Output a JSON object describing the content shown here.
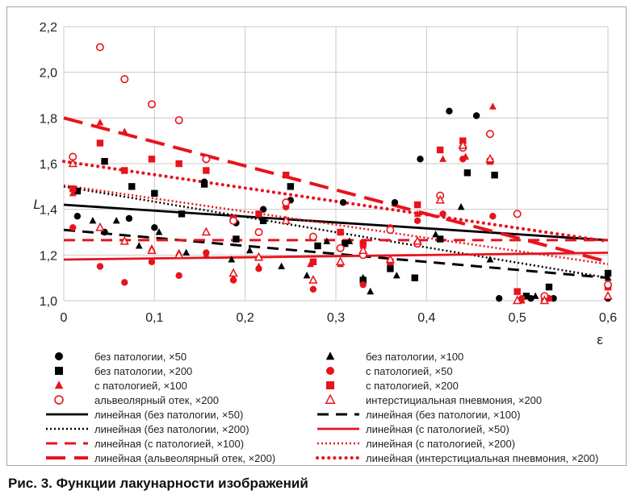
{
  "chart_data": {
    "type": "scatter",
    "xlabel": "ε",
    "ylabel": "L",
    "xlim": [
      0,
      0.6
    ],
    "ylim": [
      1.0,
      2.2
    ],
    "x_ticks": [
      "0",
      "0,1",
      "0,2",
      "0,3",
      "0,4",
      "0,5",
      "0,6"
    ],
    "y_ticks": [
      "1,0",
      "1,2",
      "1,4",
      "1,6",
      "1,8",
      "2,0",
      "2,2"
    ],
    "grid": "vertical and horizontal",
    "legend_position": "bottom",
    "series": [
      {
        "name": "без патологии, ×50",
        "marker": "circle-filled",
        "color": "#000000",
        "points": [
          [
            0.015,
            1.37
          ],
          [
            0.045,
            1.3
          ],
          [
            0.072,
            1.36
          ],
          [
            0.1,
            1.32
          ],
          [
            0.155,
            1.52
          ],
          [
            0.19,
            1.34
          ],
          [
            0.22,
            1.4
          ],
          [
            0.25,
            1.44
          ],
          [
            0.308,
            1.43
          ],
          [
            0.365,
            1.43
          ],
          [
            0.393,
            1.62
          ],
          [
            0.425,
            1.83
          ],
          [
            0.455,
            1.81
          ],
          [
            0.48,
            1.01
          ],
          [
            0.515,
            1.01
          ],
          [
            0.54,
            1.01
          ],
          [
            0.6,
            1.01
          ]
        ]
      },
      {
        "name": "без патологии, ×100",
        "marker": "triangle-filled",
        "color": "#000000",
        "points": [
          [
            0.032,
            1.35
          ],
          [
            0.058,
            1.35
          ],
          [
            0.083,
            1.24
          ],
          [
            0.105,
            1.3
          ],
          [
            0.135,
            1.21
          ],
          [
            0.185,
            1.18
          ],
          [
            0.205,
            1.22
          ],
          [
            0.24,
            1.15
          ],
          [
            0.268,
            1.11
          ],
          [
            0.29,
            1.26
          ],
          [
            0.315,
            1.26
          ],
          [
            0.33,
            1.1
          ],
          [
            0.338,
            1.04
          ],
          [
            0.367,
            1.11
          ],
          [
            0.41,
            1.29
          ],
          [
            0.438,
            1.41
          ],
          [
            0.47,
            1.18
          ],
          [
            0.52,
            1.02
          ],
          [
            0.6,
            1.1
          ]
        ]
      },
      {
        "name": "без патологии, ×200",
        "marker": "square-filled",
        "color": "#000000",
        "points": [
          [
            0.015,
            1.48
          ],
          [
            0.045,
            1.61
          ],
          [
            0.075,
            1.5
          ],
          [
            0.1,
            1.47
          ],
          [
            0.13,
            1.38
          ],
          [
            0.155,
            1.51
          ],
          [
            0.19,
            1.27
          ],
          [
            0.22,
            1.35
          ],
          [
            0.25,
            1.5
          ],
          [
            0.28,
            1.24
          ],
          [
            0.31,
            1.25
          ],
          [
            0.33,
            1.09
          ],
          [
            0.36,
            1.14
          ],
          [
            0.387,
            1.1
          ],
          [
            0.415,
            1.27
          ],
          [
            0.445,
            1.56
          ],
          [
            0.475,
            1.55
          ],
          [
            0.51,
            1.02
          ],
          [
            0.535,
            1.06
          ],
          [
            0.6,
            1.12
          ]
        ]
      },
      {
        "name": "с патологией, ×50",
        "marker": "circle-filled",
        "color": "#e8131c",
        "points": [
          [
            0.01,
            1.32
          ],
          [
            0.04,
            1.15
          ],
          [
            0.067,
            1.08
          ],
          [
            0.097,
            1.17
          ],
          [
            0.127,
            1.11
          ],
          [
            0.157,
            1.21
          ],
          [
            0.187,
            1.09
          ],
          [
            0.215,
            1.14
          ],
          [
            0.245,
            1.41
          ],
          [
            0.275,
            1.05
          ],
          [
            0.305,
            1.3
          ],
          [
            0.33,
            1.07
          ],
          [
            0.36,
            1.32
          ],
          [
            0.39,
            1.35
          ],
          [
            0.418,
            1.38
          ],
          [
            0.44,
            1.62
          ],
          [
            0.473,
            1.37
          ],
          [
            0.505,
            1.01
          ],
          [
            0.535,
            1.01
          ],
          [
            0.6,
            1.06
          ]
        ]
      },
      {
        "name": "с патологией, ×100",
        "marker": "triangle-filled",
        "color": "#e8131c",
        "points": [
          [
            0.01,
            1.47
          ],
          [
            0.04,
            1.78
          ],
          [
            0.067,
            1.74
          ],
          [
            0.097,
            1.23
          ],
          [
            0.127,
            1.21
          ],
          [
            0.157,
            1.2
          ],
          [
            0.187,
            1.1
          ],
          [
            0.215,
            1.15
          ],
          [
            0.245,
            1.35
          ],
          [
            0.272,
            1.16
          ],
          [
            0.305,
            1.16
          ],
          [
            0.33,
            1.24
          ],
          [
            0.36,
            1.17
          ],
          [
            0.39,
            1.38
          ],
          [
            0.418,
            1.62
          ],
          [
            0.443,
            1.63
          ],
          [
            0.473,
            1.85
          ],
          [
            0.505,
            1.0
          ],
          [
            0.535,
            1.01
          ],
          [
            0.6,
            1.06
          ]
        ]
      },
      {
        "name": "с патологией, ×200",
        "marker": "square-filled",
        "color": "#e8131c",
        "points": [
          [
            0.01,
            1.49
          ],
          [
            0.04,
            1.69
          ],
          [
            0.067,
            1.57
          ],
          [
            0.097,
            1.62
          ],
          [
            0.127,
            1.6
          ],
          [
            0.157,
            1.57
          ],
          [
            0.187,
            1.36
          ],
          [
            0.215,
            1.38
          ],
          [
            0.245,
            1.55
          ],
          [
            0.275,
            1.17
          ],
          [
            0.305,
            1.3
          ],
          [
            0.33,
            1.25
          ],
          [
            0.36,
            1.17
          ],
          [
            0.39,
            1.42
          ],
          [
            0.415,
            1.66
          ],
          [
            0.44,
            1.7
          ],
          [
            0.47,
            1.61
          ],
          [
            0.5,
            1.04
          ],
          [
            0.53,
            1.01
          ],
          [
            0.6,
            1.06
          ]
        ]
      },
      {
        "name": "альвеолярный отек, ×200",
        "marker": "circle-open",
        "color": "#e8131c",
        "points": [
          [
            0.01,
            1.63
          ],
          [
            0.04,
            2.11
          ],
          [
            0.067,
            1.97
          ],
          [
            0.097,
            1.86
          ],
          [
            0.127,
            1.79
          ],
          [
            0.157,
            1.62
          ],
          [
            0.187,
            1.35
          ],
          [
            0.215,
            1.3
          ],
          [
            0.245,
            1.43
          ],
          [
            0.275,
            1.28
          ],
          [
            0.305,
            1.23
          ],
          [
            0.33,
            1.2
          ],
          [
            0.36,
            1.31
          ],
          [
            0.39,
            1.25
          ],
          [
            0.415,
            1.46
          ],
          [
            0.44,
            1.67
          ],
          [
            0.47,
            1.73
          ],
          [
            0.5,
            1.38
          ],
          [
            0.53,
            1.02
          ],
          [
            0.6,
            1.07
          ]
        ]
      },
      {
        "name": "интерстициальная пневмония, ×200",
        "marker": "triangle-open",
        "color": "#e8131c",
        "points": [
          [
            0.01,
            1.6
          ],
          [
            0.04,
            1.32
          ],
          [
            0.067,
            1.26
          ],
          [
            0.097,
            1.22
          ],
          [
            0.127,
            1.2
          ],
          [
            0.157,
            1.3
          ],
          [
            0.187,
            1.12
          ],
          [
            0.215,
            1.19
          ],
          [
            0.245,
            1.35
          ],
          [
            0.275,
            1.09
          ],
          [
            0.305,
            1.17
          ],
          [
            0.33,
            1.22
          ],
          [
            0.36,
            1.18
          ],
          [
            0.39,
            1.26
          ],
          [
            0.415,
            1.44
          ],
          [
            0.44,
            1.68
          ],
          [
            0.47,
            1.62
          ],
          [
            0.5,
            1.0
          ],
          [
            0.53,
            1.0
          ],
          [
            0.6,
            1.02
          ]
        ]
      }
    ],
    "trendlines": [
      {
        "name": "линейная (без патологии, ×50)",
        "color": "#000000",
        "style": "solid",
        "from": [
          0,
          1.42
        ],
        "to": [
          0.6,
          1.265
        ]
      },
      {
        "name": "линейная (без патологии, ×100)",
        "color": "#000000",
        "style": "dash",
        "from": [
          0,
          1.31
        ],
        "to": [
          0.6,
          1.1
        ]
      },
      {
        "name": "линейная (без патологии, ×200)",
        "color": "#000000",
        "style": "dot",
        "from": [
          0,
          1.5
        ],
        "to": [
          0.6,
          1.1
        ]
      },
      {
        "name": "линейная (с патологией, ×50)",
        "color": "#e8131c",
        "style": "solid",
        "from": [
          0,
          1.18
        ],
        "to": [
          0.6,
          1.21
        ]
      },
      {
        "name": "линейная (с патологией, ×100)",
        "color": "#e8131c",
        "style": "dash",
        "from": [
          0,
          1.265
        ],
        "to": [
          0.6,
          1.265
        ]
      },
      {
        "name": "линейная (с патологией, ×200)",
        "color": "#e8131c",
        "style": "dot",
        "from": [
          0,
          1.505
        ],
        "to": [
          0.6,
          1.16
        ]
      },
      {
        "name": "линейная (альвеолярный отек, ×200)",
        "color": "#e8131c",
        "style": "longdash",
        "from": [
          0,
          1.8
        ],
        "to": [
          0.6,
          1.17
        ]
      },
      {
        "name": "линейная (интерстициальная пневмония, ×200)",
        "color": "#e8131c",
        "style": "roundDot",
        "from": [
          0,
          1.61
        ],
        "to": [
          0.6,
          1.26
        ]
      }
    ]
  },
  "legend": [
    {
      "label": "без патологии, ×50",
      "icon": "circle-filled",
      "color": "#000000"
    },
    {
      "label": "без патологии, ×100",
      "icon": "triangle-filled",
      "color": "#000000"
    },
    {
      "label": "без патологии, ×200",
      "icon": "square-filled",
      "color": "#000000"
    },
    {
      "label": "с патологией, ×50",
      "icon": "circle-filled",
      "color": "#e8131c"
    },
    {
      "label": "с патологией, ×100",
      "icon": "triangle-filled",
      "color": "#e8131c"
    },
    {
      "label": "с патологией, ×200",
      "icon": "square-filled",
      "color": "#e8131c"
    },
    {
      "label": "альвеолярный отек, ×200",
      "icon": "circle-open",
      "color": "#e8131c"
    },
    {
      "label": "интерстициальная пневмония, ×200",
      "icon": "triangle-open",
      "color": "#e8131c"
    },
    {
      "label": "линейная (без патологии, ×50)",
      "icon": "line-solid",
      "color": "#000000"
    },
    {
      "label": "линейная (без патологии, ×100)",
      "icon": "line-dash",
      "color": "#000000"
    },
    {
      "label": "линейная (без патологии, ×200)",
      "icon": "line-dot",
      "color": "#000000"
    },
    {
      "label": "линейная (с патологией, ×50)",
      "icon": "line-solid",
      "color": "#e8131c"
    },
    {
      "label": "линейная (с патологией, ×100)",
      "icon": "line-dash",
      "color": "#e8131c"
    },
    {
      "label": "линейная (с патологией, ×200)",
      "icon": "line-dot",
      "color": "#e8131c"
    },
    {
      "label": "линейная (альвеолярный отек, ×200)",
      "icon": "line-longdash",
      "color": "#e8131c"
    },
    {
      "label": "линейная (интерстициальная пневмония, ×200)",
      "icon": "line-rounddot",
      "color": "#e8131c"
    }
  ],
  "caption": "Рис. 3. Функции лакунарности изображений"
}
